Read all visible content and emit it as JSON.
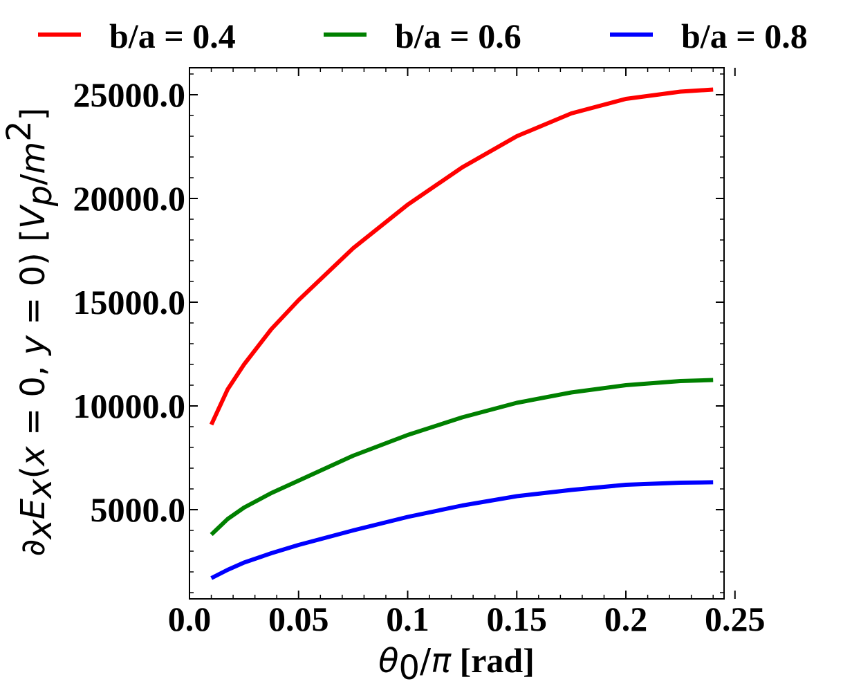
{
  "chart_data": {
    "type": "line",
    "xlabel": {
      "math": "θ0/π",
      "unit": "[rad]"
    },
    "ylabel": {
      "math": "∂xEx(x = 0, y = 0)",
      "unit": "[Vp/m2]"
    },
    "xlim": [
      0.0,
      0.245
    ],
    "ylim": [
      700,
      26300
    ],
    "x_ticks": [
      0.0,
      0.05,
      0.1,
      0.15,
      0.2,
      0.25
    ],
    "x_tick_labels": [
      "0.0",
      "0.05",
      "0.1",
      "0.15",
      "0.2",
      "0.25"
    ],
    "y_ticks": [
      5000,
      10000,
      15000,
      20000,
      25000
    ],
    "y_tick_labels": [
      "5000.0",
      "10000.0",
      "15000.0",
      "20000.0",
      "25000.0"
    ],
    "grid": false,
    "legend_position": "top",
    "x": [
      0.01,
      0.0175,
      0.025,
      0.0375,
      0.05,
      0.075,
      0.1,
      0.125,
      0.15,
      0.175,
      0.2,
      0.225,
      0.24
    ],
    "series": [
      {
        "name": "b/a = 0.4",
        "color": "#ff0000",
        "values": [
          9100,
          10800,
          12000,
          13700,
          15100,
          17600,
          19700,
          21500,
          23000,
          24100,
          24800,
          25150,
          25250
        ]
      },
      {
        "name": "b/a = 0.6",
        "color": "#008000",
        "values": [
          3800,
          4550,
          5100,
          5800,
          6400,
          7600,
          8600,
          9450,
          10150,
          10650,
          11000,
          11200,
          11250
        ]
      },
      {
        "name": "b/a = 0.8",
        "color": "#0000ff",
        "values": [
          1700,
          2100,
          2450,
          2900,
          3300,
          4000,
          4650,
          5200,
          5650,
          5950,
          6200,
          6300,
          6320
        ]
      }
    ]
  }
}
